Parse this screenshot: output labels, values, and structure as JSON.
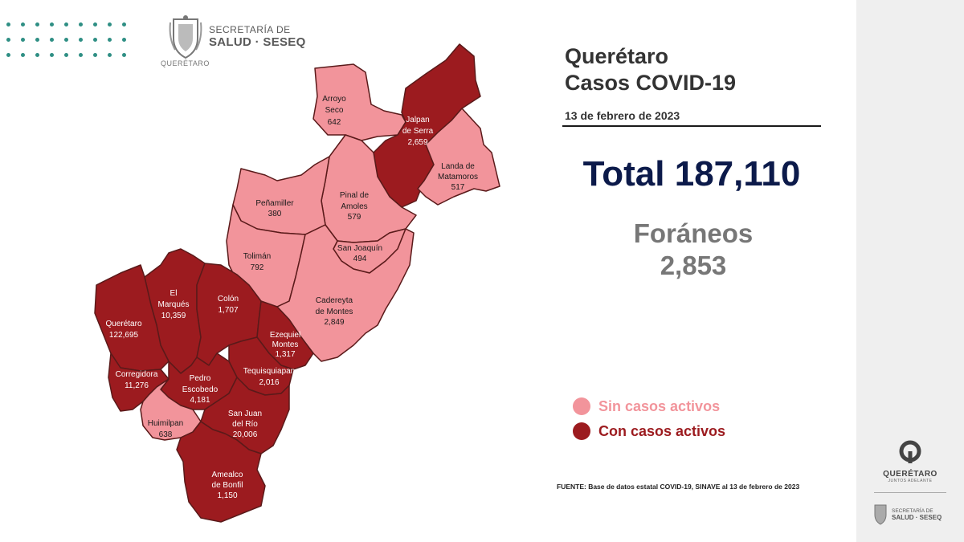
{
  "header": {
    "logo_line1": "SECRETARÍA DE",
    "logo_line2": "SALUD · SESEQ",
    "seal_caption": "QUERÉTARO"
  },
  "title_line1": "Querétaro",
  "title_line2": "Casos COVID-19",
  "date": "13 de febrero de 2023",
  "total": "Total 187,110",
  "foraneos_label": "Foráneos",
  "foraneos_value": "2,853",
  "legend": [
    {
      "label": "Sin casos activos",
      "color": "#f2949b"
    },
    {
      "label": "Con casos activos",
      "color": "#9c1b1f"
    }
  ],
  "source": "FUENTE: Base de datos estatal COVID-19, SINAVE al 13 de febrero de 2023",
  "sidebar": {
    "brand": "QUERÉTARO",
    "brand_sub": "JUNTOS ADELANTE",
    "seal_line1": "SECRETARÍA DE",
    "seal_line2": "SALUD · SESEQ"
  },
  "colors": {
    "active": "#9c1b1f",
    "inactive": "#f2949b",
    "border": "#5a1a1a"
  },
  "municipalities": [
    {
      "key": "arroyo_seco",
      "name_lines": [
        "Arroyo",
        "Seco"
      ],
      "cases": "642",
      "active": false
    },
    {
      "key": "jalpan",
      "name_lines": [
        "Jalpan",
        "de Serra"
      ],
      "cases": "2,659",
      "active": true
    },
    {
      "key": "landa",
      "name_lines": [
        "Landa de",
        "Matamoros"
      ],
      "cases": "517",
      "active": false
    },
    {
      "key": "pinal",
      "name_lines": [
        "Pinal de",
        "Amoles"
      ],
      "cases": "579",
      "active": false
    },
    {
      "key": "penamiller",
      "name_lines": [
        "Peñamiller"
      ],
      "cases": "380",
      "active": false
    },
    {
      "key": "san_joaquin",
      "name_lines": [
        "San Joaquín"
      ],
      "cases": "494",
      "active": false
    },
    {
      "key": "toliman",
      "name_lines": [
        "Tolimán"
      ],
      "cases": "792",
      "active": false
    },
    {
      "key": "cadereyta",
      "name_lines": [
        "Cadereyta",
        "de Montes"
      ],
      "cases": "2,849",
      "active": false
    },
    {
      "key": "el_marques",
      "name_lines": [
        "El",
        "Marqués"
      ],
      "cases": "10,359",
      "active": true
    },
    {
      "key": "colon",
      "name_lines": [
        "Colón"
      ],
      "cases": "1,707",
      "active": true
    },
    {
      "key": "queretaro",
      "name_lines": [
        "Querétaro"
      ],
      "cases": "122,695",
      "active": true
    },
    {
      "key": "ezequiel",
      "name_lines": [
        "Ezequiel",
        "Montes"
      ],
      "cases": "1,317",
      "active": true
    },
    {
      "key": "tequisquiapan",
      "name_lines": [
        "Tequisquiapan"
      ],
      "cases": "2,016",
      "active": true
    },
    {
      "key": "corregidora",
      "name_lines": [
        "Corregidora"
      ],
      "cases": "11,276",
      "active": true
    },
    {
      "key": "pedro_escobedo",
      "name_lines": [
        "Pedro",
        "Escobedo"
      ],
      "cases": "4,181",
      "active": true
    },
    {
      "key": "huimilpan",
      "name_lines": [
        "Huimilpan"
      ],
      "cases": "638",
      "active": false
    },
    {
      "key": "san_juan",
      "name_lines": [
        "San Juan",
        "del Río"
      ],
      "cases": "20,006",
      "active": true
    },
    {
      "key": "amealco",
      "name_lines": [
        "Amealco",
        "de Bonfil"
      ],
      "cases": "1,150",
      "active": true
    }
  ]
}
